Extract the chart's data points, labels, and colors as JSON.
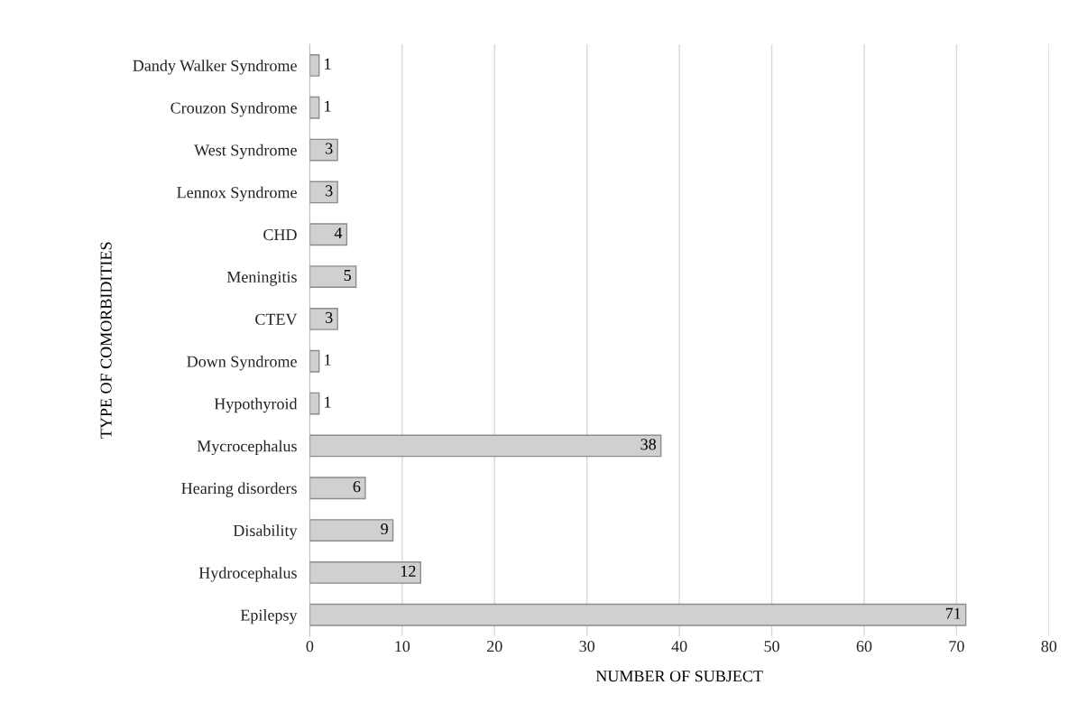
{
  "chart_data": {
    "type": "bar",
    "orientation": "horizontal",
    "xlabel": "NUMBER OF SUBJECT",
    "ylabel": "TYPE OF COMORBIDITIES",
    "categories": [
      "Dandy Walker Syndrome",
      "Crouzon Syndrome",
      "West Syndrome",
      "Lennox Syndrome",
      "CHD",
      "Meningitis",
      "CTEV",
      "Down Syndrome",
      "Hypothyroid",
      "Mycrocephalus",
      "Hearing disorders",
      "Disability",
      "Hydrocephalus",
      "Epilepsy"
    ],
    "values": [
      1,
      1,
      3,
      3,
      4,
      5,
      3,
      1,
      1,
      38,
      6,
      9,
      12,
      71
    ],
    "color": "#d0d0d0",
    "xlim": [
      0,
      80
    ],
    "xticks": [
      0,
      10,
      20,
      30,
      40,
      50,
      60,
      70,
      80
    ],
    "grid": "x",
    "data_labels": true
  }
}
